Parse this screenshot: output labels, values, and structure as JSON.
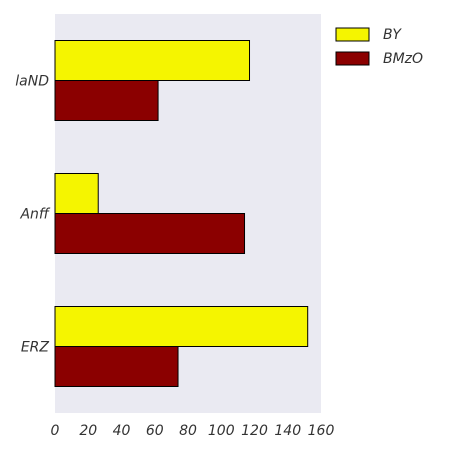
{
  "chart_data": {
    "type": "bar",
    "orientation": "horizontal",
    "categories": [
      "laND",
      "Anff",
      "ERZ"
    ],
    "series": [
      {
        "name": "BY",
        "values": [
          117,
          26,
          152
        ],
        "color": "#f5f500"
      },
      {
        "name": "BMzO",
        "values": [
          62,
          114,
          74
        ],
        "color": "#8b0000"
      }
    ],
    "xlim": [
      0,
      160
    ],
    "xticks": [
      0,
      20,
      40,
      60,
      80,
      100,
      120,
      140,
      160
    ],
    "grid": false,
    "legend_position": "top-right, outside plot",
    "plot_background": "#eaeaf2"
  }
}
